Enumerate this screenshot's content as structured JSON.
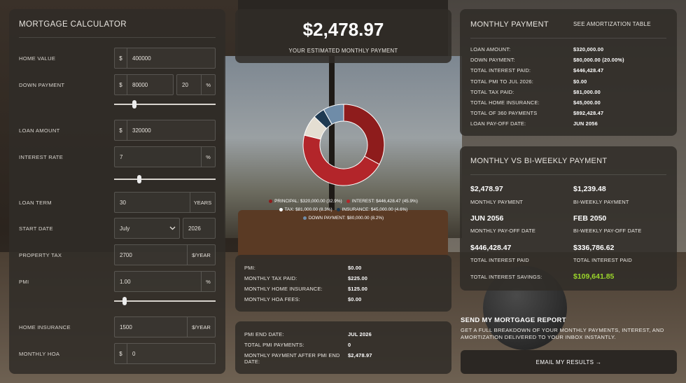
{
  "calculator": {
    "title": "MORTGAGE CALCULATOR",
    "home_value": {
      "label": "HOME VALUE",
      "prefix": "$",
      "value": "400000"
    },
    "down_payment": {
      "label": "DOWN PAYMENT",
      "prefix": "$",
      "value": "80000",
      "percent": "20",
      "percent_suffix": "%",
      "slider_fraction": 0.2
    },
    "loan_amount": {
      "label": "LOAN AMOUNT",
      "prefix": "$",
      "value": "320000"
    },
    "interest_rate": {
      "label": "INTEREST RATE",
      "value": "7",
      "suffix": "%",
      "slider_fraction": 0.25
    },
    "loan_term": {
      "label": "LOAN TERM",
      "value": "30",
      "suffix": "YEARS"
    },
    "start_date": {
      "label": "START DATE",
      "month": "July",
      "year": "2026"
    },
    "property_tax": {
      "label": "PROPERTY TAX",
      "value": "2700",
      "suffix": "$/YEAR"
    },
    "pmi": {
      "label": "PMI",
      "value": "1.00",
      "suffix": "%",
      "slider_fraction": 0.1
    },
    "home_insurance": {
      "label": "HOME INSURANCE",
      "value": "1500",
      "suffix": "$/YEAR"
    },
    "monthly_hoa": {
      "label": "MONTHLY HOA",
      "prefix": "$",
      "value": "0"
    }
  },
  "hero": {
    "amount": "$2,478.97",
    "subtitle": "YOUR ESTIMATED MONTHLY PAYMENT"
  },
  "chart_data": {
    "type": "pie",
    "slices": [
      {
        "name": "PRINCIPAL: $320,000.00 (32.9%)",
        "value": 32.9,
        "color": "#8e1c1c"
      },
      {
        "name": "INTEREST: $446,428.47 (45.9%)",
        "value": 45.9,
        "color": "#b3252a"
      },
      {
        "name": "TAX: $81,000.00 (8.3%)",
        "value": 8.3,
        "color": "#e4ded2"
      },
      {
        "name": "INSURANCE: $45,000.00 (4.6%)",
        "value": 4.6,
        "color": "#1f3a52"
      },
      {
        "name": "DOWN PAYMENT: $80,000.00 (8.2%)",
        "value": 8.2,
        "color": "#6f8ca8"
      }
    ]
  },
  "pmi_block": {
    "rows": [
      {
        "label": "PMI:",
        "value": "$0.00"
      },
      {
        "label": "MONTHLY TAX PAID:",
        "value": "$225.00"
      },
      {
        "label": "MONTHLY HOME INSURANCE:",
        "value": "$125.00"
      },
      {
        "label": "MONTHLY HOA FEES:",
        "value": "$0.00"
      }
    ]
  },
  "pmi_end_block": {
    "rows": [
      {
        "label": "PMI END DATE:",
        "value": "JUL 2026"
      },
      {
        "label": "TOTAL PMI PAYMENTS:",
        "value": "0"
      },
      {
        "label": "MONTHLY PAYMENT AFTER PMI END",
        "label2": "DATE:",
        "value": "$2,478.97"
      }
    ]
  },
  "monthly_payment": {
    "title": "MONTHLY PAYMENT",
    "link": "SEE AMORTIZATION TABLE",
    "rows": [
      {
        "label": "LOAN AMOUNT:",
        "value": "$320,000.00"
      },
      {
        "label": "DOWN PAYMENT:",
        "value": "$80,000.00 (20.00%)"
      },
      {
        "label": "TOTAL INTEREST PAID:",
        "value": "$446,428.47"
      },
      {
        "label": "TOTAL PMI TO JUL 2026:",
        "value": "$0.00"
      },
      {
        "label": "TOTAL TAX PAID:",
        "value": "$81,000.00"
      },
      {
        "label": "TOTAL HOME INSURANCE:",
        "value": "$45,000.00"
      },
      {
        "label": "TOTAL OF 360 PAYMENTS",
        "value": "$892,428.47"
      },
      {
        "label": "LOAN PAY-OFF DATE:",
        "value": "JUN 2056"
      }
    ]
  },
  "biweekly": {
    "title": "MONTHLY VS BI-WEEKLY PAYMENT",
    "monthly_payment": {
      "value": "$2,478.97",
      "label": "MONTHLY PAYMENT"
    },
    "biweekly_payment": {
      "value": "$1,239.48",
      "label": "BI-WEEKLY PAYMENT"
    },
    "monthly_payoff": {
      "value": "JUN 2056",
      "label": "MONTHLY PAY-OFF DATE"
    },
    "biweekly_payoff": {
      "value": "FEB 2050",
      "label": "BI-WEEKLY PAY-OFF DATE"
    },
    "monthly_interest": {
      "value": "$446,428.47",
      "label": "TOTAL INTEREST PAID"
    },
    "biweekly_interest": {
      "value": "$336,786.62",
      "label": "TOTAL INTEREST PAID"
    },
    "savings": {
      "label": "TOTAL INTEREST SAVINGS:",
      "value": "$109,641.85",
      "color": "#9bd62a"
    }
  },
  "report": {
    "title": "SEND MY MORTGAGE REPORT",
    "description": "GET A FULL BREAKDOWN OF YOUR MONTHLY PAYMENTS, INTEREST, AND AMORTIZATION DELIVERED TO YOUR INBOX INSTANTLY.",
    "button": "EMAIL MY RESULTS →"
  }
}
